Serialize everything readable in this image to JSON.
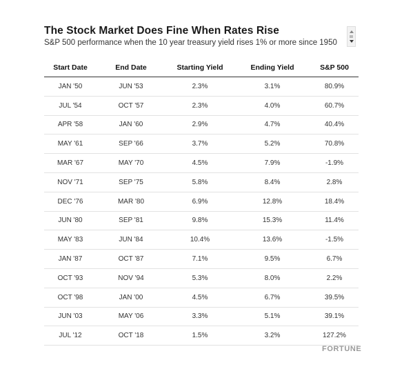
{
  "title": "The Stock Market Does Fine When Rates Rise",
  "subtitle": "S&P 500 performance when the 10 year treasury yield rises 1% or more since 1950",
  "table": {
    "headers": [
      "Start Date",
      "End Date",
      "Starting Yield",
      "Ending Yield",
      "S&P 500"
    ],
    "rows": [
      [
        "JAN '50",
        "JUN '53",
        "2.3%",
        "3.1%",
        "80.9%"
      ],
      [
        "JUL '54",
        "OCT '57",
        "2.3%",
        "4.0%",
        "60.7%"
      ],
      [
        "APR '58",
        "JAN '60",
        "2.9%",
        "4.7%",
        "40.4%"
      ],
      [
        "MAY '61",
        "SEP '66",
        "3.7%",
        "5.2%",
        "70.8%"
      ],
      [
        "MAR '67",
        "MAY '70",
        "4.5%",
        "7.9%",
        "-1.9%"
      ],
      [
        "NOV '71",
        "SEP '75",
        "5.8%",
        "8.4%",
        "2.8%"
      ],
      [
        "DEC '76",
        "MAR '80",
        "6.9%",
        "12.8%",
        "18.4%"
      ],
      [
        "JUN '80",
        "SEP '81",
        "9.8%",
        "15.3%",
        "11.4%"
      ],
      [
        "MAY '83",
        "JUN '84",
        "10.4%",
        "13.6%",
        "-1.5%"
      ],
      [
        "JAN '87",
        "OCT '87",
        "7.1%",
        "9.5%",
        "6.7%"
      ],
      [
        "OCT '93",
        "NOV '94",
        "5.3%",
        "8.0%",
        "2.2%"
      ],
      [
        "OCT '98",
        "JAN '00",
        "4.5%",
        "6.7%",
        "39.5%"
      ],
      [
        "JUN '03",
        "MAY '06",
        "3.3%",
        "5.1%",
        "39.1%"
      ],
      [
        "JUL '12",
        "OCT '18",
        "1.5%",
        "3.2%",
        "127.2%"
      ]
    ]
  },
  "brand": "FORTUNE"
}
